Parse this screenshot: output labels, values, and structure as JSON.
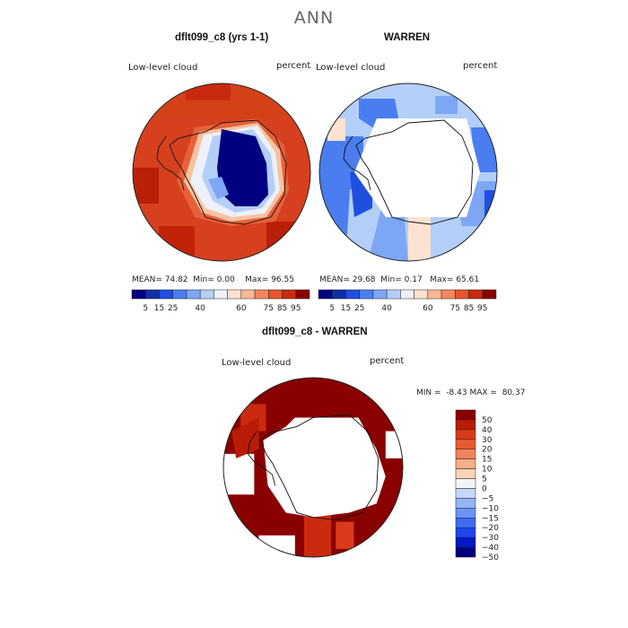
{
  "page": {
    "title": "ANN"
  },
  "panels": [
    {
      "title": "dflt099_c8 (yrs 1-1)",
      "field": "Low-level cloud",
      "units": "percent",
      "stats": {
        "mean_label": "MEAN=",
        "mean": "74.82",
        "min_label": "Min=",
        "min": "0.00",
        "max_label": "Max=",
        "max": "96.55"
      }
    },
    {
      "title": "WARREN",
      "field": "Low-level cloud",
      "units": "percent",
      "stats": {
        "mean_label": "MEAN=",
        "mean": "29.68",
        "min_label": "Min=",
        "min": "0.17",
        "max_label": "Max=",
        "max": "65.61"
      }
    },
    {
      "title": "dflt099_c8 - WARREN",
      "field": "Low-level cloud",
      "units": "percent",
      "stats": {
        "min_label": "MIN =",
        "min": "-8.43",
        "max_label": "MAX =",
        "max": "80.37"
      }
    }
  ],
  "colorbar_abs": {
    "colors": [
      "#000080",
      "#0d2fa8",
      "#1f4fe0",
      "#4a7ef0",
      "#7da6f5",
      "#b3cff8",
      "#eef0fa",
      "#fde2cf",
      "#f9b892",
      "#f3865e",
      "#e8542e",
      "#c92a10",
      "#8a0000"
    ],
    "labels": [
      "5",
      "15",
      "25",
      "40",
      "60",
      "75",
      "85",
      "95"
    ]
  },
  "colorbar_diff": {
    "colors": [
      "#000080",
      "#0018c8",
      "#1f45f0",
      "#3e6cf2",
      "#6b95f4",
      "#94b6f7",
      "#c4d8fa",
      "#f4f4f4",
      "#fbd3b8",
      "#f8ae8a",
      "#f2825c",
      "#ea5a30",
      "#da3a18",
      "#b81c06",
      "#8a0000"
    ],
    "labels": [
      "50",
      "40",
      "30",
      "20",
      "15",
      "10",
      "5",
      "0",
      "−5",
      "−10",
      "−15",
      "−20",
      "−30",
      "−40",
      "−50"
    ]
  },
  "colors": {
    "land_outline": "#111111",
    "map_edge": "#222222"
  }
}
